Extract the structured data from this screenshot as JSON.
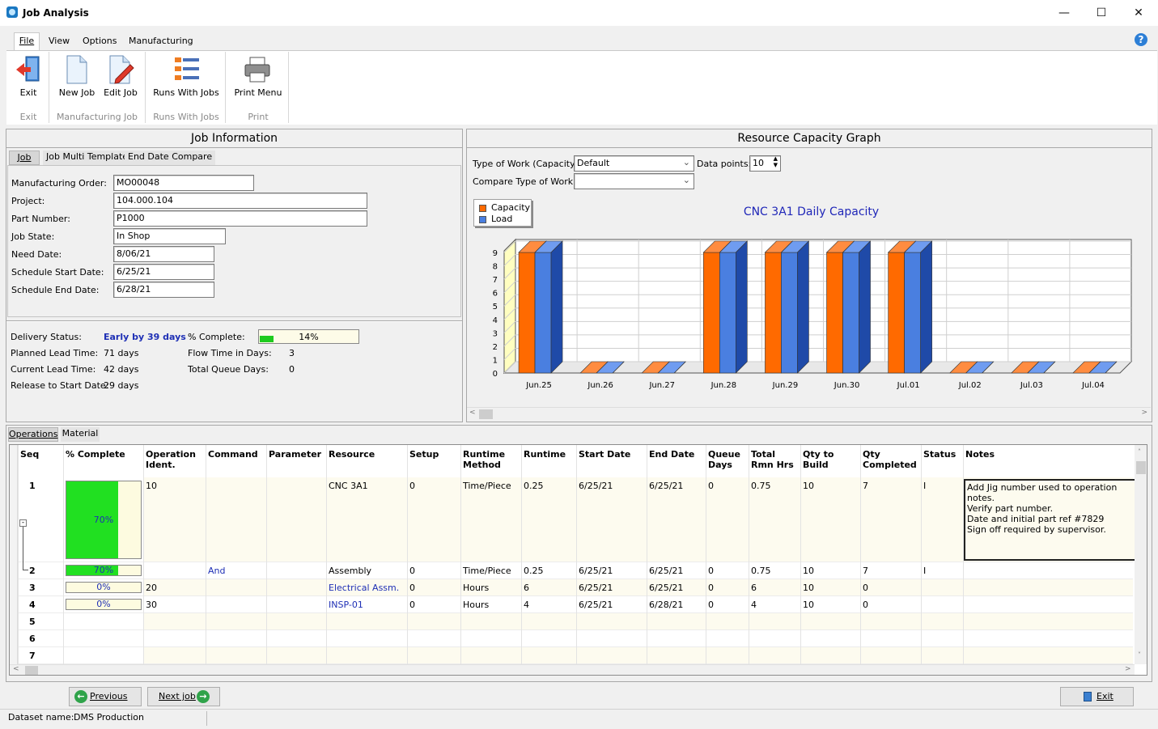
{
  "window": {
    "title": "Job Analysis"
  },
  "menu": [
    "File",
    "View",
    "Options",
    "Manufacturing"
  ],
  "ribbon": {
    "buttons": [
      "Exit",
      "New Job",
      "Edit Job",
      "Runs With Jobs",
      "Print Menu"
    ],
    "groups": [
      "Exit",
      "Manufacturing Job",
      "Runs With Jobs",
      "Print"
    ]
  },
  "job_info": {
    "title": "Job Information",
    "tabs": [
      "Job",
      "Job Multi Template",
      "End Date Compare"
    ],
    "fields": [
      {
        "label": "Manufacturing Order:",
        "value": "MO00048"
      },
      {
        "label": "Project:",
        "value": "104.000.104"
      },
      {
        "label": "Part Number:",
        "value": "P1000"
      },
      {
        "label": "Job State:",
        "value": "In Shop"
      },
      {
        "label": "Need Date:",
        "value": "8/06/21"
      },
      {
        "label": "Schedule Start Date:",
        "value": "6/25/21"
      },
      {
        "label": "Schedule End Date:",
        "value": "6/28/21"
      }
    ],
    "delivery_status_label": "Delivery Status:",
    "delivery_status": "Early by 39 days",
    "planned_lead_label": "Planned Lead Time:",
    "planned_lead": "71 days",
    "current_lead_label": "Current Lead Time:",
    "current_lead": "42 days",
    "release_label": "Release to Start Date:",
    "release": "29 days",
    "pct_complete_label": "% Complete:",
    "pct_complete": "14%",
    "pct_complete_value": 0.14,
    "flow_label": "Flow Time in Days:",
    "flow": "3",
    "queue_label": "Total Queue Days:",
    "queue": "0"
  },
  "capacity": {
    "title": "Resource Capacity Graph",
    "type_label": "Type of Work (Capacity):",
    "type_value": "Default",
    "datapoints_label": "Data points:",
    "datapoints_value": "10",
    "compare_label": "Compare Type of Work:",
    "compare_value": ""
  },
  "chart_data": {
    "type": "bar",
    "title": "CNC 3A1 Daily Capacity",
    "categories": [
      "Jun.25",
      "Jun.26",
      "Jun.27",
      "Jun.28",
      "Jun.29",
      "Jun.30",
      "Jul.01",
      "Jul.02",
      "Jul.03",
      "Jul.04"
    ],
    "series": [
      {
        "name": "Capacity",
        "color": "#ff6a00",
        "values": [
          9,
          0,
          0,
          9,
          9,
          9,
          9,
          0,
          0,
          0
        ]
      },
      {
        "name": "Load",
        "color": "#4a7fe0",
        "values": [
          9,
          0,
          0,
          9,
          9,
          9,
          9,
          0,
          0,
          0
        ]
      }
    ],
    "ylim": [
      0,
      9
    ],
    "yticks": [
      "0",
      "1",
      "2",
      "3",
      "4",
      "5",
      "6",
      "7",
      "8",
      "9"
    ],
    "legend": "top-left",
    "grid": true
  },
  "bottom_tabs": [
    "Operations",
    "Material"
  ],
  "operations": {
    "columns": [
      "Seq",
      "% Complete",
      "Operation Ident.",
      "Command",
      "Parameter",
      "Resource",
      "Setup",
      "Runtime Method",
      "Runtime",
      "Start Date",
      "End Date",
      "Queue Days",
      "Total Rmn Hrs",
      "Qty to Build",
      "Qty Completed",
      "Status",
      "Notes"
    ],
    "rows": [
      {
        "seq": "1",
        "pct": "70%",
        "pct_value": 0.7,
        "ident": "10",
        "command": "",
        "parameter": "",
        "resource": "CNC 3A1",
        "setup": "0",
        "method": "Time/Piece",
        "runtime": "0.25",
        "start": "6/25/21",
        "end": "6/25/21",
        "queue": "0",
        "rmn": "0.75",
        "qty_build": "10",
        "qty_done": "7",
        "status": "I",
        "notes": [
          "Add Jig number used to operation notes.",
          "Verify part number.",
          "Date and initial part ref #7829",
          "Sign off required by supervisor."
        ]
      },
      {
        "seq": "2",
        "pct": "70%",
        "pct_value": 0.7,
        "ident": "",
        "command": "And",
        "parameter": "",
        "resource": "Assembly",
        "setup": "0",
        "method": "Time/Piece",
        "runtime": "0.25",
        "start": "6/25/21",
        "end": "6/25/21",
        "queue": "0",
        "rmn": "0.75",
        "qty_build": "10",
        "qty_done": "7",
        "status": "I",
        "notes": []
      },
      {
        "seq": "3",
        "pct": "0%",
        "pct_value": 0,
        "ident": "20",
        "command": "",
        "parameter": "",
        "resource": "Electrical Assm.",
        "setup": "0",
        "method": "Hours",
        "runtime": "6",
        "start": "6/25/21",
        "end": "6/25/21",
        "queue": "0",
        "rmn": "6",
        "qty_build": "10",
        "qty_done": "0",
        "status": "",
        "notes": []
      },
      {
        "seq": "4",
        "pct": "0%",
        "pct_value": 0,
        "ident": "30",
        "command": "",
        "parameter": "",
        "resource": "INSP-01",
        "setup": "0",
        "method": "Hours",
        "runtime": "4",
        "start": "6/25/21",
        "end": "6/28/21",
        "queue": "0",
        "rmn": "4",
        "qty_build": "10",
        "qty_done": "0",
        "status": "",
        "notes": []
      },
      {
        "seq": "5"
      },
      {
        "seq": "6"
      },
      {
        "seq": "7"
      }
    ]
  },
  "footer": {
    "prev": "Previous job",
    "next": "Next job",
    "exit": "Exit",
    "dataset_label": "Dataset name:",
    "dataset": "DMS Production"
  }
}
